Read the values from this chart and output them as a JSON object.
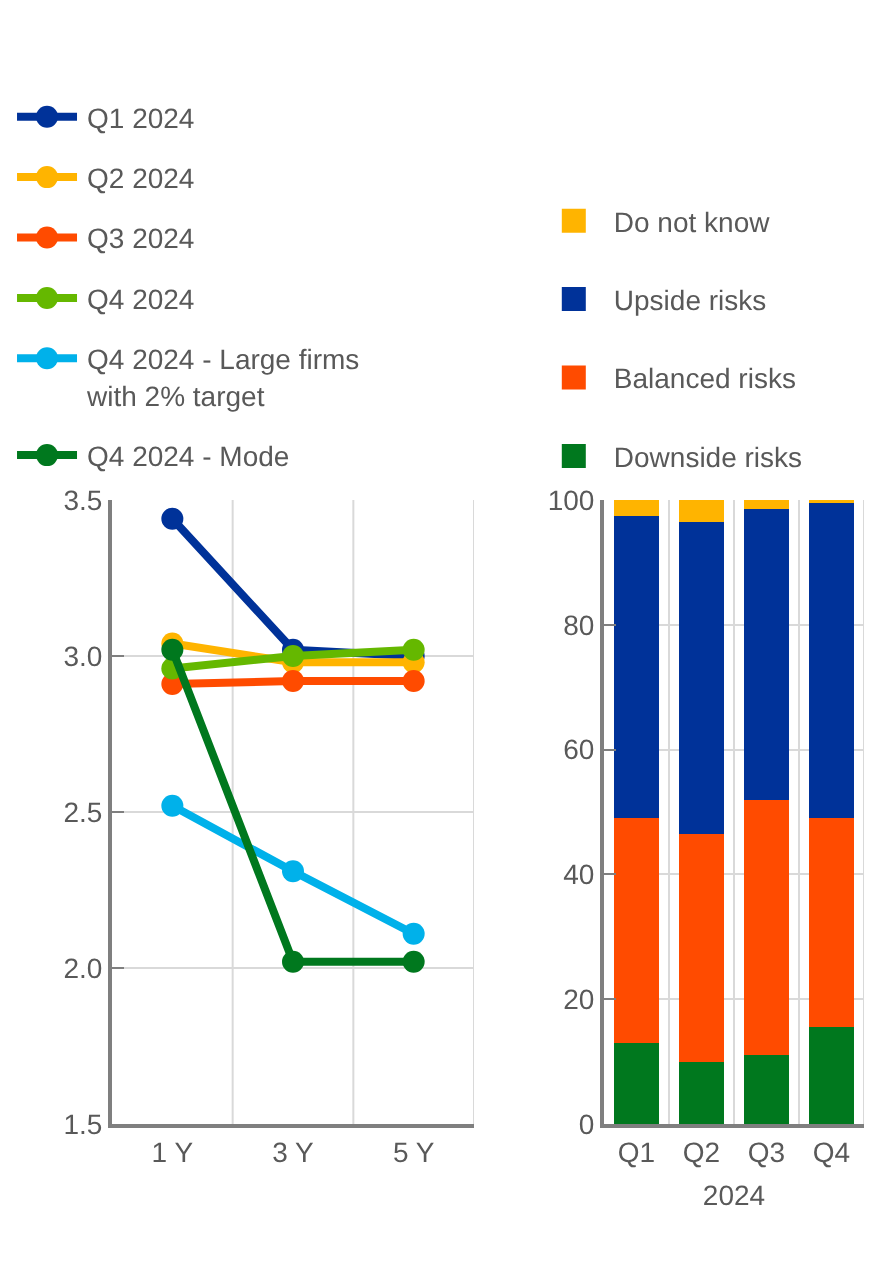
{
  "chart_data": [
    {
      "type": "line",
      "categories": [
        "1 Y",
        "3 Y",
        "5 Y"
      ],
      "ylim": [
        1.5,
        3.5
      ],
      "yticks": [
        {
          "value": 1.5,
          "label": "1.5"
        },
        {
          "value": 2,
          "label": "2.0"
        },
        {
          "value": 2.5,
          "label": "2.5"
        },
        {
          "value": 3,
          "label": "3.0"
        },
        {
          "value": 3.5,
          "label": "3.5"
        }
      ],
      "grid": true,
      "legend": "top",
      "marker": "circle",
      "series": [
        {
          "name": "Q1 2024",
          "color": "#003299",
          "values": [
            3.44,
            3.02,
            3.0
          ]
        },
        {
          "name": "Q2 2024",
          "color": "#ffb400",
          "values": [
            3.04,
            2.98,
            2.98
          ]
        },
        {
          "name": "Q3 2024",
          "color": "#ff4b00",
          "values": [
            2.91,
            2.92,
            2.92
          ]
        },
        {
          "name": "Q4 2024",
          "color": "#65b800",
          "values": [
            2.96,
            3.0,
            3.02
          ]
        },
        {
          "name": "Q4 2024 - Large firms with 2% target",
          "color": "#00b1ea",
          "values": [
            2.52,
            2.31,
            2.11
          ]
        },
        {
          "name": "Q4 2024 - Mode",
          "color": "#00781e",
          "values": [
            3.02,
            2.02,
            2.02
          ]
        }
      ]
    },
    {
      "type": "bar",
      "stacked": true,
      "categories": [
        "Q1",
        "Q2",
        "Q3",
        "Q4"
      ],
      "xlabel": "2024",
      "ylim": [
        0,
        100
      ],
      "yticks": [
        0,
        20,
        40,
        60,
        80,
        100
      ],
      "grid": true,
      "legend": "top",
      "series": [
        {
          "name": "Downside risks",
          "color": "#00781e",
          "values": [
            13,
            10,
            11,
            15.5
          ]
        },
        {
          "name": "Balanced risks",
          "color": "#ff4b00",
          "values": [
            36,
            36.5,
            41,
            33.5
          ]
        },
        {
          "name": "Upside risks",
          "color": "#003299",
          "values": [
            48.5,
            50,
            46.5,
            50.5
          ]
        },
        {
          "name": "Do not know",
          "color": "#ffb400",
          "values": [
            2.5,
            3.5,
            1.5,
            0.5
          ]
        }
      ]
    }
  ]
}
